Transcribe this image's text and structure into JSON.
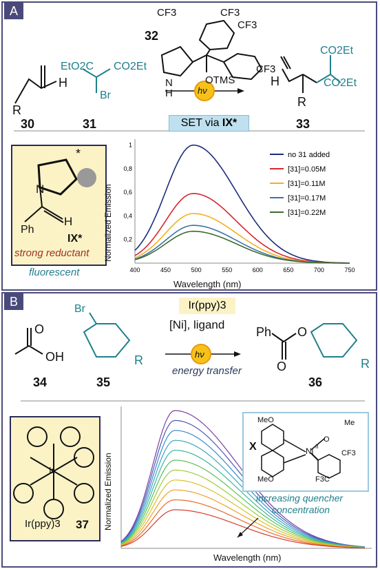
{
  "panel_a": {
    "label": "A",
    "compounds": {
      "c30": "30",
      "c31": "31",
      "c32": "32",
      "c33": "33"
    },
    "reagent_text": {
      "cf3": "CF3",
      "otms": "OTMS",
      "nh": "N",
      "h": "H",
      "r": "R",
      "br": "Br",
      "eto2c": "EtO2C",
      "co2et": "CO2Et",
      "hv": "hν"
    },
    "set_box": {
      "prefix": "SET via ",
      "bold": "IX*"
    },
    "intermediate": {
      "label": "IX*",
      "n": "N",
      "h": "H",
      "ph": "Ph",
      "star": "*",
      "caption_strong": "strong reductant",
      "caption_fluor": "fluorescent"
    },
    "legend": [
      "no 31 added",
      "[31]=0.05M",
      "[31]=0.11M",
      "[31]=0.17M",
      "[31]=0.22M"
    ],
    "chart_data": {
      "type": "line",
      "xlabel": "Wavelength (nm)",
      "ylabel": "Normalized Emission",
      "x_ticks": [
        "400",
        "450",
        "500",
        "550",
        "600",
        "650",
        "700",
        "750"
      ],
      "y_ticks": [
        "0,2",
        "0,4",
        "0,6",
        "0,8",
        "1"
      ],
      "xlim": [
        400,
        750
      ],
      "ylim": [
        0,
        1.05
      ],
      "peak_nm": 495,
      "series": [
        {
          "name": "no 31 added",
          "color": "#1b2a7a",
          "peak": 1.0
        },
        {
          "name": "[31]=0.05M",
          "color": "#d6262e",
          "peak": 0.59
        },
        {
          "name": "[31]=0.11M",
          "color": "#f2b01e",
          "peak": 0.42
        },
        {
          "name": "[31]=0.17M",
          "color": "#3a72a8",
          "peak": 0.32
        },
        {
          "name": "[31]=0.22M",
          "color": "#3e6b2e",
          "peak": 0.27
        }
      ]
    }
  },
  "panel_b": {
    "label": "B",
    "compounds": {
      "c34": "34",
      "c35": "35",
      "c36": "36",
      "c37": "37"
    },
    "reagents": {
      "line1": "Ir(ppy)3",
      "line2": "[Ni], ligand",
      "below": "energy transfer",
      "hv": "hν"
    },
    "atoms": {
      "o": "O",
      "oh": "OH",
      "br": "Br",
      "r": "R",
      "ph": "Ph"
    },
    "ir_complex": {
      "label": "Ir(ppy)3",
      "ir": "Ir",
      "n": "N"
    },
    "ni_complex": {
      "label": "X",
      "meo1": "MeO",
      "meo2": "MeO",
      "ni": "Ni",
      "ni_ox": "II",
      "o": "O",
      "ac": "Me",
      "cf3a": "CF3",
      "cf3b": "F3C",
      "n": "N"
    },
    "quench_note": [
      "increasing quencher",
      "concentration"
    ],
    "chart2": {
      "xlabel": "Wavelength (nm)",
      "ylabel": "Normalized Emission",
      "n_curves": 11
    }
  }
}
